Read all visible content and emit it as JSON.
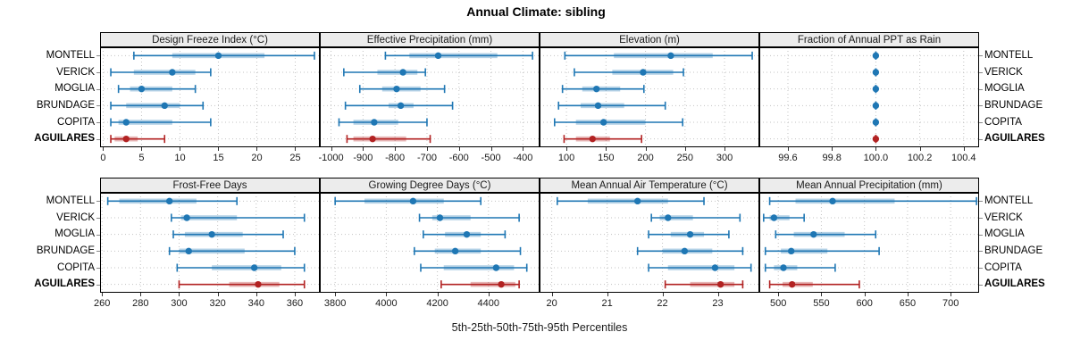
{
  "title": "Annual Climate: sibling",
  "xlabel": "5th-25th-50th-75th-95th Percentiles",
  "sites": [
    "MONTELL",
    "VERICK",
    "MOGLIA",
    "BRUNDAGE",
    "COPITA",
    "AGUILARES"
  ],
  "highlight_site": "AGUILARES",
  "colors": {
    "series": "#1f77b4",
    "highlight": "#b22222",
    "strip_bg": "#ececec",
    "grid": "#c3c3c3",
    "panel_border": "#000000"
  },
  "chart_data": {
    "type": "scatter",
    "subtype": "percentile-interval-dotplot",
    "note": "each row shows [5th,25th,50th,75th,95th] percentiles; thin line 5-95 with end caps, translucent band 25-75, dot at median",
    "categories": [
      "MONTELL",
      "VERICK",
      "MOGLIA",
      "BRUNDAGE",
      "COPITA",
      "AGUILARES"
    ],
    "panels": [
      {
        "title": "Design Freeze Index (°C)",
        "row": 0,
        "col": 0,
        "xlim": [
          -0.4,
          28.2
        ],
        "tick_values": [
          0,
          5,
          10,
          15,
          20,
          25
        ],
        "tick_labels": [
          "0",
          "5",
          "10",
          "15",
          "20",
          "25"
        ],
        "values": [
          [
            4,
            9,
            15,
            21,
            27.5
          ],
          [
            1,
            4,
            9,
            12,
            14
          ],
          [
            2,
            3.5,
            5,
            9,
            12
          ],
          [
            1,
            3,
            8,
            10,
            13
          ],
          [
            1,
            2,
            3,
            9,
            14
          ],
          [
            1,
            1.5,
            3,
            4.5,
            8
          ]
        ]
      },
      {
        "title": "Effective Precipitation (mm)",
        "row": 0,
        "col": 1,
        "xlim": [
          -1035,
          -348
        ],
        "tick_values": [
          -1000,
          -900,
          -800,
          -700,
          -600,
          -500,
          -400
        ],
        "tick_labels": [
          "-1000",
          "-900",
          "-800",
          "-700",
          "-600",
          "-500",
          "-400"
        ],
        "values": [
          [
            -830,
            -755,
            -665,
            -480,
            -370
          ],
          [
            -960,
            -855,
            -775,
            -730,
            -705
          ],
          [
            -910,
            -840,
            -795,
            -720,
            -645
          ],
          [
            -955,
            -820,
            -782,
            -742,
            -620
          ],
          [
            -975,
            -930,
            -865,
            -790,
            -700
          ],
          [
            -950,
            -930,
            -870,
            -765,
            -690
          ]
        ]
      },
      {
        "title": "Elevation (m)",
        "row": 0,
        "col": 2,
        "xlim": [
          66,
          344
        ],
        "tick_values": [
          100,
          150,
          200,
          250,
          300
        ],
        "tick_labels": [
          "100",
          "150",
          "200",
          "250",
          "300"
        ],
        "values": [
          [
            98,
            160,
            232,
            285,
            335
          ],
          [
            110,
            158,
            197,
            235,
            248
          ],
          [
            95,
            120,
            138,
            168,
            198
          ],
          [
            90,
            118,
            140,
            173,
            225
          ],
          [
            85,
            112,
            147,
            200,
            247
          ],
          [
            97,
            112,
            133,
            155,
            195
          ]
        ]
      },
      {
        "title": "Fraction of Annual PPT as Rain",
        "row": 0,
        "col": 3,
        "xlim": [
          99.47,
          100.47
        ],
        "tick_values": [
          99.6,
          99.8,
          100.0,
          100.2,
          100.4
        ],
        "tick_labels": [
          "99.6",
          "99.8",
          "100.0",
          "100.2",
          "100.4"
        ],
        "values": [
          [
            100,
            100,
            100,
            100,
            100
          ],
          [
            100,
            100,
            100,
            100,
            100
          ],
          [
            100,
            100,
            100,
            100,
            100
          ],
          [
            100,
            100,
            100,
            100,
            100
          ],
          [
            100,
            100,
            100,
            100,
            100
          ],
          [
            100,
            100,
            100,
            100,
            100
          ]
        ]
      },
      {
        "title": "Frost-Free Days",
        "row": 1,
        "col": 0,
        "xlim": [
          259,
          373
        ],
        "tick_values": [
          260,
          280,
          300,
          320,
          340,
          360
        ],
        "tick_labels": [
          "260",
          "280",
          "300",
          "320",
          "340",
          "360"
        ],
        "values": [
          [
            263,
            269,
            295,
            309,
            330
          ],
          [
            296,
            301,
            304,
            330,
            365
          ],
          [
            297,
            303,
            317,
            333,
            354
          ],
          [
            295,
            300,
            305,
            334,
            360
          ],
          [
            299,
            317,
            339,
            353,
            365
          ],
          [
            300,
            326,
            341,
            352,
            365
          ]
        ]
      },
      {
        "title": "Growing Degree Days (°C)",
        "row": 1,
        "col": 1,
        "xlim": [
          3740,
          4600
        ],
        "tick_values": [
          3800,
          4000,
          4200,
          4400
        ],
        "tick_labels": [
          "3800",
          "4000",
          "4200",
          "4400"
        ],
        "values": [
          [
            3800,
            3915,
            4105,
            4225,
            4370
          ],
          [
            4130,
            4180,
            4210,
            4330,
            4520
          ],
          [
            4145,
            4230,
            4315,
            4370,
            4465
          ],
          [
            4110,
            4190,
            4270,
            4370,
            4525
          ],
          [
            4135,
            4225,
            4430,
            4500,
            4550
          ],
          [
            4215,
            4330,
            4450,
            4505,
            4520
          ]
        ]
      },
      {
        "title": "Mean Annual Air Temperature (°C)",
        "row": 1,
        "col": 2,
        "xlim": [
          19.78,
          23.75
        ],
        "tick_values": [
          20,
          21,
          22,
          23
        ],
        "tick_labels": [
          "20",
          "21",
          "22",
          "23"
        ],
        "values": [
          [
            20.1,
            20.65,
            21.55,
            22.1,
            22.75
          ],
          [
            21.8,
            21.95,
            22.1,
            22.55,
            23.4
          ],
          [
            21.75,
            22.15,
            22.5,
            22.75,
            23.2
          ],
          [
            21.55,
            22.0,
            22.4,
            22.9,
            23.45
          ],
          [
            21.75,
            22.1,
            22.95,
            23.3,
            23.6
          ],
          [
            22.05,
            22.5,
            23.05,
            23.3,
            23.45
          ]
        ]
      },
      {
        "title": "Mean Annual Precipitation (mm)",
        "row": 1,
        "col": 3,
        "xlim": [
          478,
          733
        ],
        "tick_values": [
          500,
          550,
          600,
          650,
          700
        ],
        "tick_labels": [
          "500",
          "550",
          "600",
          "650",
          "700"
        ],
        "values": [
          [
            490,
            520,
            563,
            635,
            730
          ],
          [
            483,
            490,
            495,
            513,
            530
          ],
          [
            497,
            518,
            541,
            577,
            613
          ],
          [
            485,
            503,
            515,
            557,
            617
          ],
          [
            485,
            495,
            506,
            522,
            566
          ],
          [
            490,
            505,
            516,
            540,
            594
          ]
        ]
      }
    ]
  }
}
